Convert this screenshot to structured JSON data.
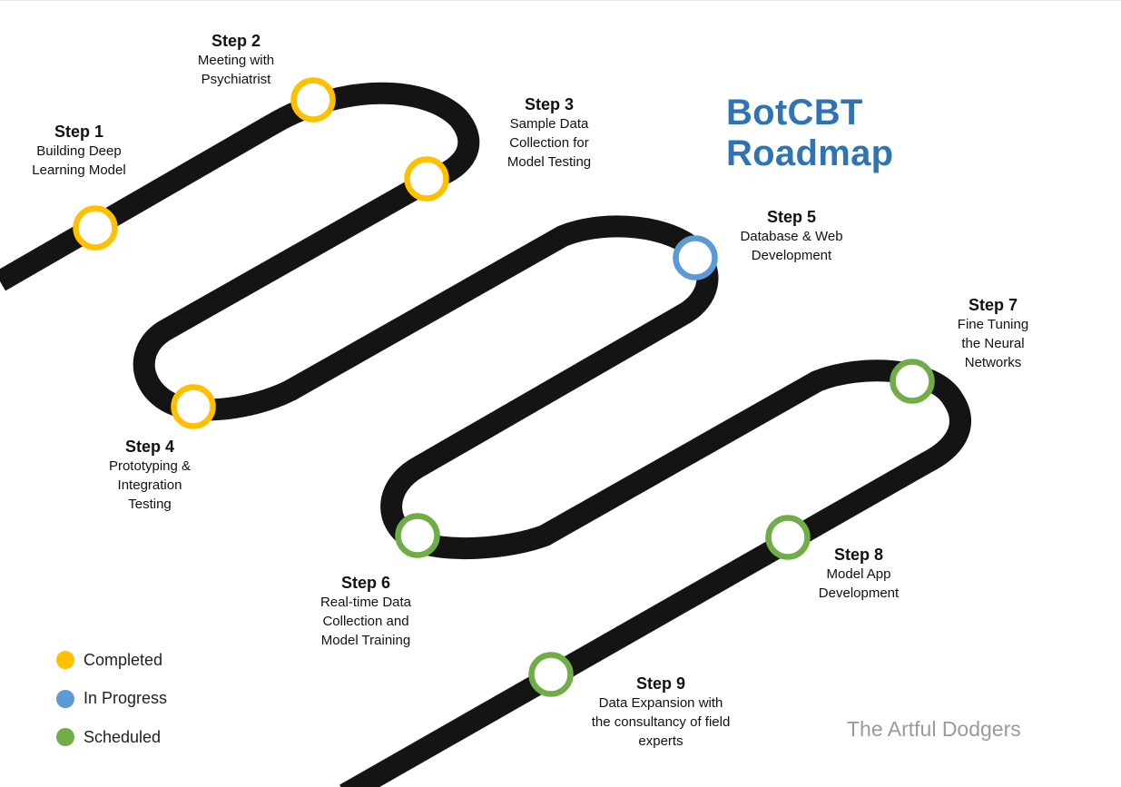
{
  "title": "BotCBT Roadmap",
  "credit": "The Artful Dodgers",
  "status_colors": {
    "completed": "#ffc000",
    "in_progress": "#5b9bd5",
    "scheduled": "#70ad47"
  },
  "road_color": "#141414",
  "legend": [
    {
      "label": "Completed",
      "status": "completed"
    },
    {
      "label": "In Progress",
      "status": "in_progress"
    },
    {
      "label": "Scheduled",
      "status": "scheduled"
    }
  ],
  "steps": [
    {
      "title": "Step 1",
      "desc": "Building Deep\nLearning Model",
      "status": "completed"
    },
    {
      "title": "Step 2",
      "desc": "Meeting with\nPsychiatrist",
      "status": "completed"
    },
    {
      "title": "Step 3",
      "desc": "Sample Data\nCollection for\nModel Testing",
      "status": "completed"
    },
    {
      "title": "Step 4",
      "desc": "Prototyping &\nIntegration\nTesting",
      "status": "completed"
    },
    {
      "title": "Step 5",
      "desc": "Database & Web\nDevelopment",
      "status": "in_progress"
    },
    {
      "title": "Step 6",
      "desc": "Real-time Data\nCollection and\nModel Training",
      "status": "scheduled"
    },
    {
      "title": "Step 7",
      "desc": "Fine Tuning\nthe Neural\nNetworks",
      "status": "scheduled"
    },
    {
      "title": "Step 8",
      "desc": "Model App\nDevelopment",
      "status": "scheduled"
    },
    {
      "title": "Step 9",
      "desc": "Data Expansion with\nthe consultancy of field\nexperts",
      "status": "scheduled"
    }
  ]
}
